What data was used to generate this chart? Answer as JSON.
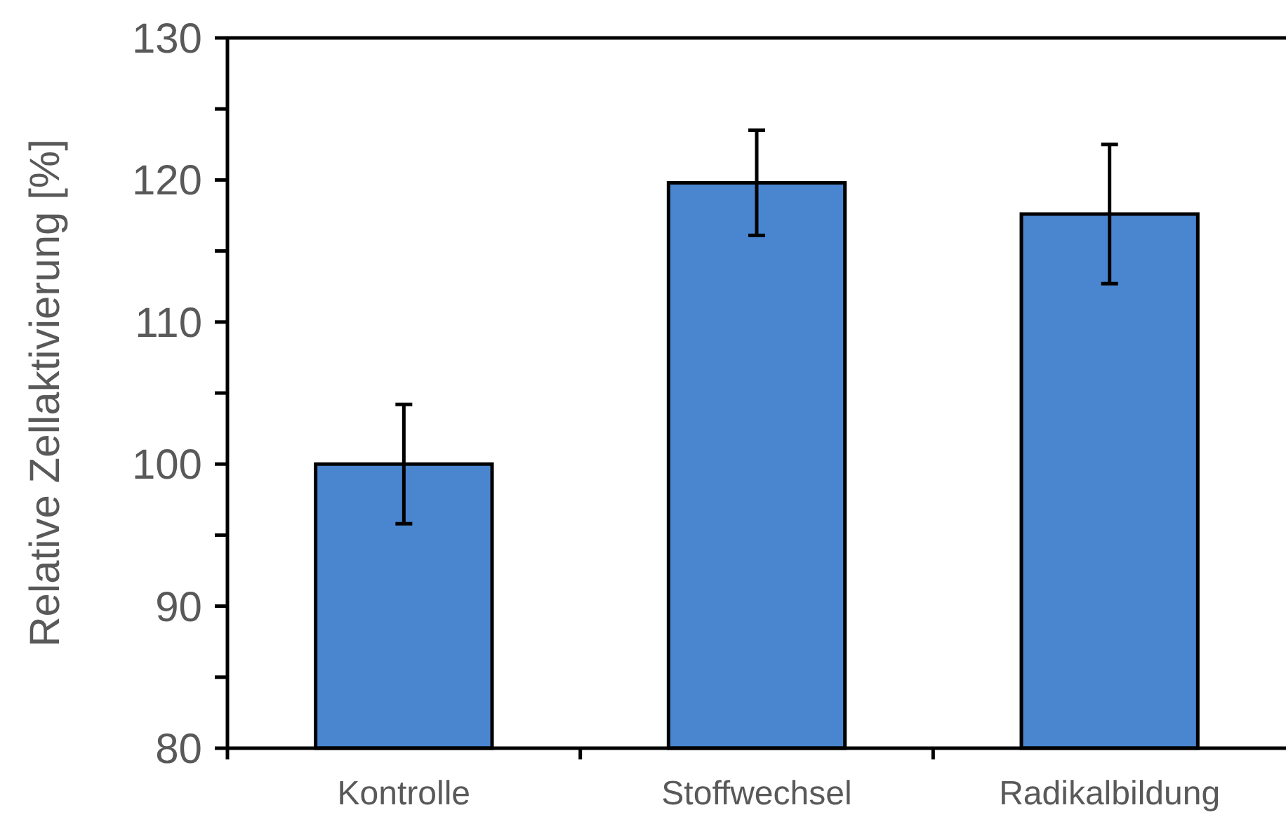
{
  "chart_data": {
    "type": "bar",
    "ylabel": "Relative Zellaktivierung [%]",
    "categories": [
      "Kontrolle",
      "Stoffwechsel",
      "Radikalbildung"
    ],
    "values": [
      100,
      119.8,
      117.6
    ],
    "errors": [
      4.2,
      3.7,
      4.9
    ],
    "color": "#4a86d0",
    "ylim": [
      80,
      130
    ],
    "yticks": [
      80,
      {
        "value": 85,
        "label": null
      },
      90,
      {
        "value": 95,
        "label": null
      },
      100,
      {
        "value": 105,
        "label": null
      },
      110,
      {
        "value": 115,
        "label": null
      },
      120,
      {
        "value": 125,
        "label": null
      },
      130
    ],
    "grid": false
  }
}
